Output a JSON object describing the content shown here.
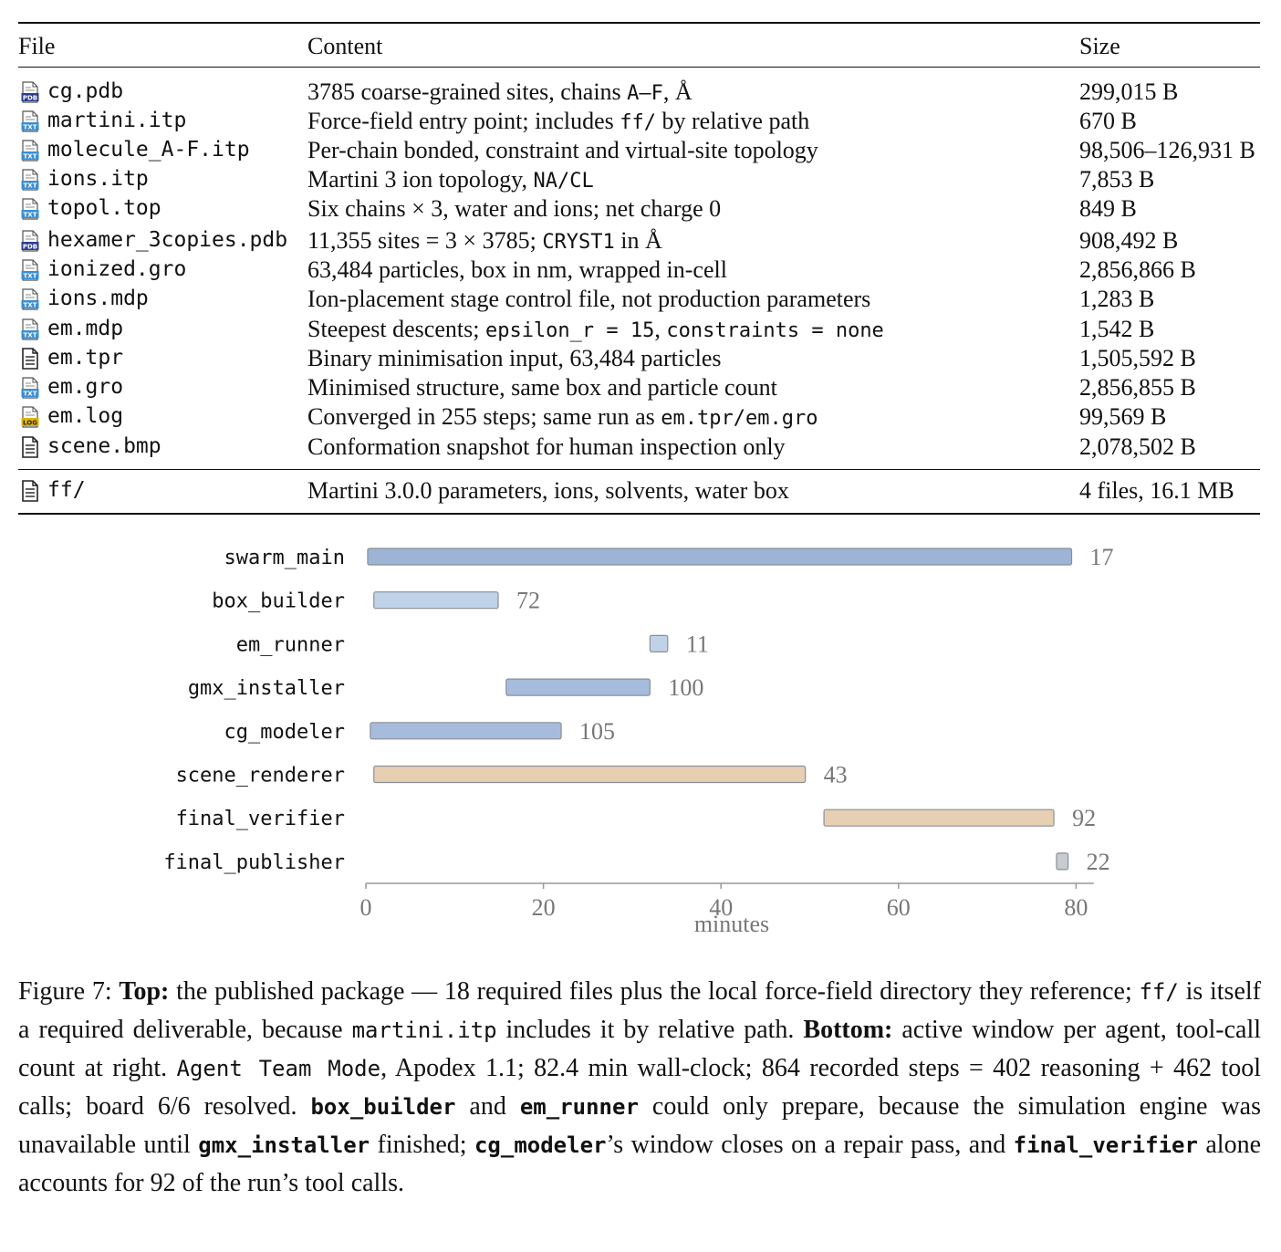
{
  "table": {
    "headers": {
      "file": "File",
      "content": "Content",
      "size": "Size"
    },
    "rows": [
      {
        "file": "cg.pdb",
        "icon": "pdb-file-icon",
        "content": [
          {
            "t": "3785 coarse-grained sites, chains "
          },
          {
            "m": "A–F"
          },
          {
            "t": ", Å"
          }
        ],
        "size": "299,015 B"
      },
      {
        "file": "martini.itp",
        "icon": "txt-file-icon",
        "content": [
          {
            "t": "Force-field entry point; includes "
          },
          {
            "m": "ff/"
          },
          {
            "t": " by relative path"
          }
        ],
        "size": "670 B"
      },
      {
        "file": "molecule_A-F.itp",
        "icon": "txt-file-icon",
        "content": [
          {
            "t": "Per-chain bonded, constraint and virtual-site topology"
          }
        ],
        "size": "98,506–126,931 B"
      },
      {
        "file": "ions.itp",
        "icon": "txt-file-icon",
        "content": [
          {
            "t": "Martini 3 ion topology, "
          },
          {
            "m": "NA/CL"
          }
        ],
        "size": "7,853 B"
      },
      {
        "file": "topol.top",
        "icon": "txt-file-icon",
        "content": [
          {
            "t": "Six chains × 3, water and ions; net charge 0"
          }
        ],
        "size": "849 B"
      },
      {
        "file": "hexamer_3copies.pdb",
        "icon": "pdb-file-icon",
        "content": [
          {
            "t": "11,355 sites = 3 × 3785; "
          },
          {
            "m": "CRYST1"
          },
          {
            "t": " in Å"
          }
        ],
        "size": "908,492 B"
      },
      {
        "file": "ionized.gro",
        "icon": "txt-file-icon",
        "content": [
          {
            "t": "63,484 particles, box in nm, wrapped in-cell"
          }
        ],
        "size": "2,856,866 B"
      },
      {
        "file": "ions.mdp",
        "icon": "txt-file-icon",
        "content": [
          {
            "t": "Ion-placement stage control file, not production parameters"
          }
        ],
        "size": "1,283 B"
      },
      {
        "file": "em.mdp",
        "icon": "txt-file-icon",
        "content": [
          {
            "t": "Steepest descents; "
          },
          {
            "m": "epsilon_r = 15"
          },
          {
            "t": ", "
          },
          {
            "m": "constraints = none"
          }
        ],
        "size": "1,542 B"
      },
      {
        "file": "em.tpr",
        "icon": "document-icon",
        "content": [
          {
            "t": "Binary minimisation input, 63,484 particles"
          }
        ],
        "size": "1,505,592 B"
      },
      {
        "file": "em.gro",
        "icon": "txt-file-icon",
        "content": [
          {
            "t": "Minimised structure, same box and particle count"
          }
        ],
        "size": "2,856,855 B"
      },
      {
        "file": "em.log",
        "icon": "log-file-icon",
        "content": [
          {
            "t": "Converged in 255 steps; same run as "
          },
          {
            "m": "em.tpr/em.gro"
          }
        ],
        "size": "99,569 B"
      },
      {
        "file": "scene.bmp",
        "icon": "document-icon",
        "content": [
          {
            "t": "Conformation snapshot for human inspection only"
          }
        ],
        "size": "2,078,502 B"
      }
    ],
    "footer_row": {
      "file": "ff/",
      "icon": "document-icon",
      "content": [
        {
          "t": "Martini 3.0.0 parameters, ions, solvents, water box"
        }
      ],
      "size": "4 files, 16.1 MB"
    },
    "icon_labels": {
      "pdb": "PDB",
      "txt": "TXT",
      "log": "LOG"
    }
  },
  "chart_data": {
    "type": "bar",
    "orientation": "horizontal-timeline",
    "xlabel": "minutes",
    "xlim": [
      0,
      82
    ],
    "xticks": [
      0,
      20,
      40,
      60,
      80
    ],
    "grid": false,
    "bars": [
      {
        "agent": "swarm_main",
        "start": 0.2,
        "end": 79.5,
        "tool_calls": 17,
        "color": "#9eb4d6"
      },
      {
        "agent": "box_builder",
        "start": 0.9,
        "end": 14.9,
        "tool_calls": 72,
        "color": "#bfd2e8"
      },
      {
        "agent": "em_runner",
        "start": 32.0,
        "end": 34.0,
        "tool_calls": 11,
        "color": "#bfd2e8"
      },
      {
        "agent": "gmx_installer",
        "start": 15.8,
        "end": 32.0,
        "tool_calls": 100,
        "color": "#a7bcdc"
      },
      {
        "agent": "cg_modeler",
        "start": 0.5,
        "end": 22.0,
        "tool_calls": 105,
        "color": "#a7bcdc"
      },
      {
        "agent": "scene_renderer",
        "start": 0.9,
        "end": 49.5,
        "tool_calls": 43,
        "color": "#e6cfb2"
      },
      {
        "agent": "final_verifier",
        "start": 51.6,
        "end": 77.5,
        "tool_calls": 92,
        "color": "#e6cfb2"
      },
      {
        "agent": "final_publisher",
        "start": 77.8,
        "end": 79.1,
        "tool_calls": 22,
        "color": "#c9cccf"
      }
    ]
  },
  "caption": [
    {
      "t": "Figure 7: "
    },
    {
      "b": "Top:"
    },
    {
      "t": " the published package — 18 required files plus the local force-field directory they reference; "
    },
    {
      "m": "ff/"
    },
    {
      "t": " is itself a required deliverable, because "
    },
    {
      "m": "martini.itp"
    },
    {
      "t": " includes it by relative path. "
    },
    {
      "b": "Bottom:"
    },
    {
      "t": " active window per agent, tool-call count at right. "
    },
    {
      "m": "Agent Team Mode"
    },
    {
      "t": ", Apodex 1.1; 82.4 min wall-clock; 864 recorded steps = 402 reasoning + 462 tool calls; board 6/6 resolved. "
    },
    {
      "bm": "box_builder"
    },
    {
      "t": " and "
    },
    {
      "bm": "em_runner"
    },
    {
      "t": " could only prepare, because the simulation engine was unavailable until "
    },
    {
      "bm": "gmx_installer"
    },
    {
      "t": " finished; "
    },
    {
      "bm": "cg_modeler"
    },
    {
      "t": "’s window closes on a repair pass, and "
    },
    {
      "bm": "final_verifier"
    },
    {
      "t": " alone accounts for 92 of the run’s tool calls."
    }
  ]
}
